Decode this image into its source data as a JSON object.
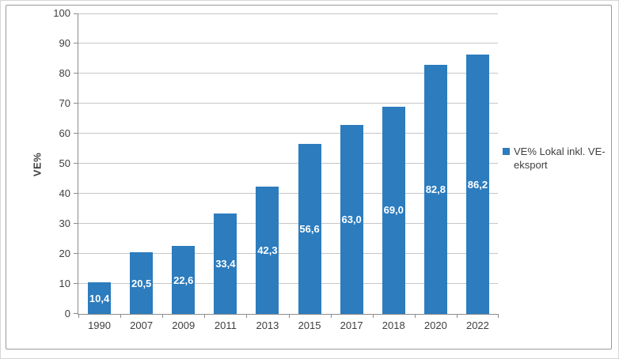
{
  "chart_data": {
    "type": "bar",
    "title": "",
    "xlabel": "",
    "ylabel": "VE%",
    "categories": [
      "1990",
      "2007",
      "2009",
      "2011",
      "2013",
      "2015",
      "2017",
      "2018",
      "2020",
      "2022"
    ],
    "values": [
      10.4,
      20.5,
      22.6,
      33.4,
      42.3,
      56.6,
      63.0,
      69.0,
      82.8,
      86.2
    ],
    "value_labels": [
      "10,4",
      "20,5",
      "22,6",
      "33,4",
      "42,3",
      "56,6",
      "63,0",
      "69,0",
      "82,8",
      "86,2"
    ],
    "ylim": [
      0,
      100
    ],
    "yticks": [
      0,
      10,
      20,
      30,
      40,
      50,
      60,
      70,
      80,
      90,
      100
    ],
    "grid": true,
    "decimal_separator": ",",
    "data_label_position": "center",
    "legend": {
      "position": "right",
      "items": [
        {
          "label": "VE% Lokal inkl. VE-eksport",
          "color": "#2c7cbe"
        }
      ]
    }
  },
  "colors": {
    "bar": "#2c7cbe",
    "bar_label_text": "#ffffff",
    "gridline": "#c6c6c6",
    "axis_line": "#8c8c8c",
    "tick_text": "#3f3f3f",
    "frame_border": "#9a9a9a",
    "background": "#ffffff"
  }
}
